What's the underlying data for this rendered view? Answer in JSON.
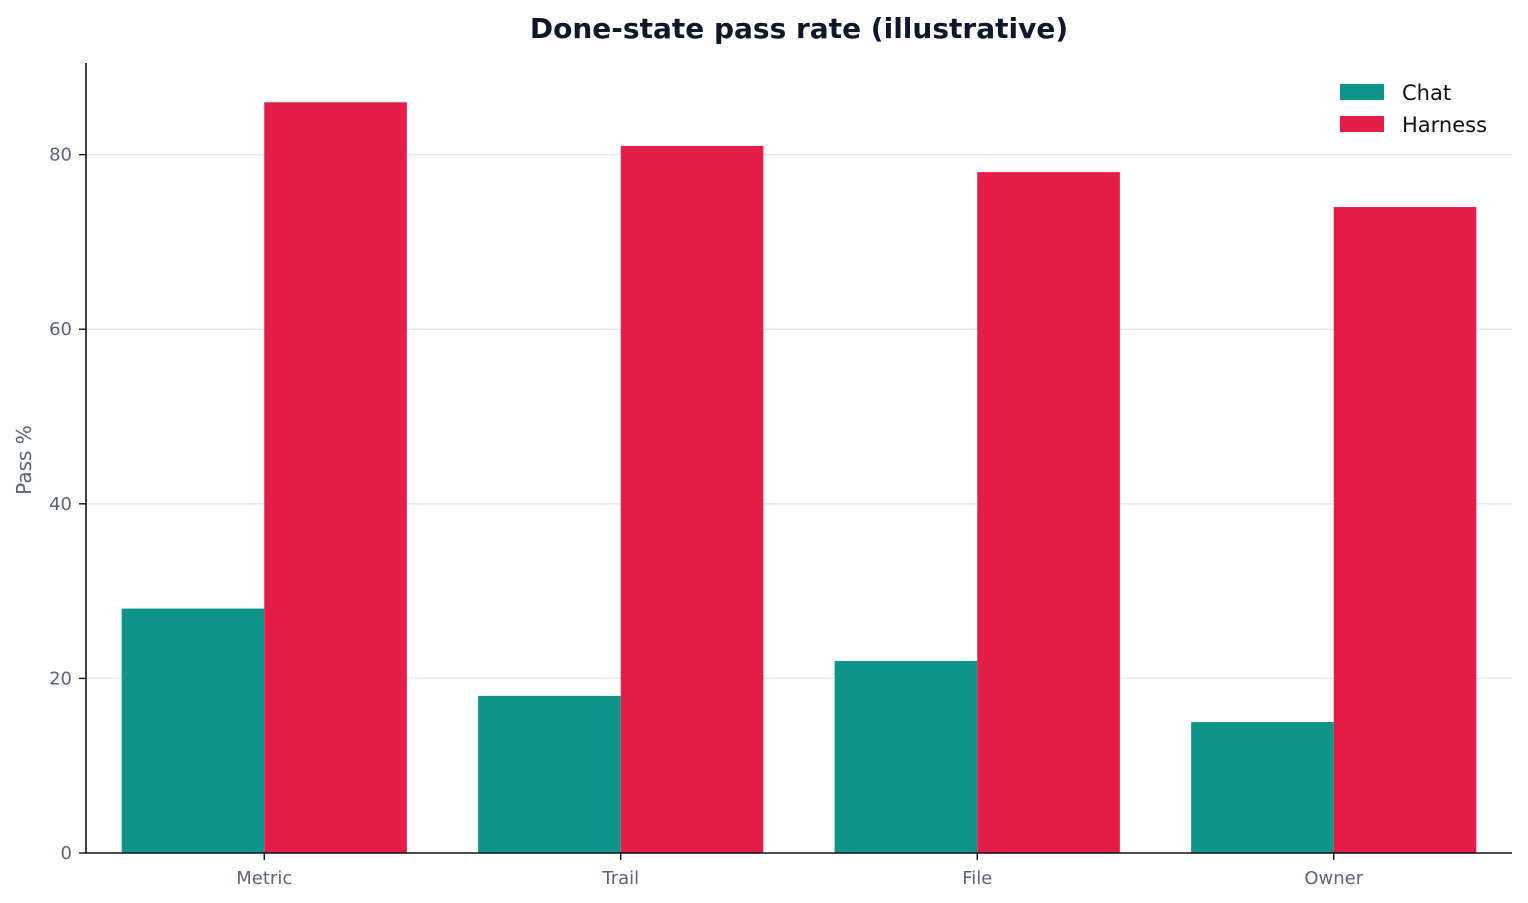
{
  "chart_data": {
    "type": "bar",
    "title": "Done-state pass rate (illustrative)",
    "xlabel": "",
    "ylabel": "Pass %",
    "categories": [
      "Metric",
      "Trail",
      "File",
      "Owner"
    ],
    "series": [
      {
        "name": "Chat",
        "values": [
          28,
          18,
          22,
          15
        ],
        "color": "#0e9488"
      },
      {
        "name": "Harness",
        "values": [
          86,
          81,
          78,
          74
        ],
        "color": "#e11d48"
      }
    ],
    "ylim": [
      0,
      90.5
    ],
    "yticks": [
      0,
      20,
      40,
      60,
      80
    ],
    "grid": "y",
    "legend": "top-right"
  }
}
